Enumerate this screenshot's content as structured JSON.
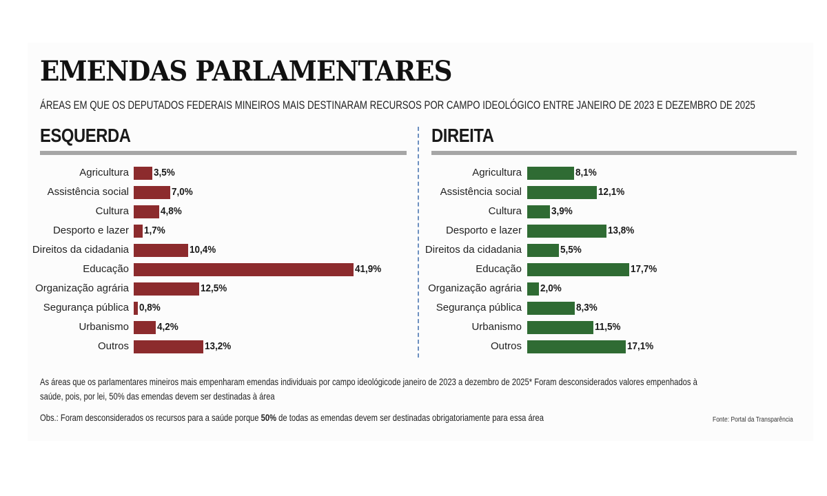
{
  "title": "EMENDAS PARLAMENTARES",
  "subtitle": "ÁREAS EM QUE OS DEPUTADOS FEDERAIS MINEIROS MAIS DESTINARAM RECURSOS POR CAMPO IDEOLÓGICO ENTRE JANEIRO DE 2023 E DEZEMBRO DE 2025",
  "notes": {
    "line1": "As áreas que os parlamentares mineiros mais empenharam emendas individuais por campo ideológicode janeiro de 2023 a dezembro de 2025*  Foram desconsiderados valores empenhados à",
    "line2": "saúde, pois, por lei, 50% das emendas devem ser destinadas à área",
    "obs_before": "Obs.: Foram desconsiderados os recursos para a saúde porque ",
    "obs_bold": "50%",
    "obs_after": " de todas as emendas devem ser destinadas obrigatoriamente para essa área",
    "source": "Fonte: Portal da Transparência"
  },
  "chart_data": [
    {
      "type": "bar",
      "title": "ESQUERDA",
      "color": "#8c2b2d",
      "categories": [
        "Agricultura",
        "Assistência social",
        "Cultura",
        "Desporto e lazer",
        "Direitos da cidadania",
        "Educação",
        "Organização agrária",
        "Segurança pública",
        "Urbanismo",
        "Outros"
      ],
      "values": [
        3.5,
        7.0,
        4.8,
        1.7,
        10.4,
        41.9,
        12.5,
        0.8,
        4.2,
        13.2
      ],
      "labels": [
        "3,5%",
        "7,0%",
        "4,8%",
        "1,7%",
        "10,4%",
        "41,9%",
        "12,5%",
        "0,8%",
        "4,2%",
        "13,2%"
      ]
    },
    {
      "type": "bar",
      "title": "DIREITA",
      "color": "#2f6b33",
      "categories": [
        "Agricultura",
        "Assistência social",
        "Cultura",
        "Desporto e lazer",
        "Direitos da cidadania",
        "Educação",
        "Organização agrária",
        "Segurança pública",
        "Urbanismo",
        "Outros"
      ],
      "values": [
        8.1,
        12.1,
        3.9,
        13.8,
        5.5,
        17.7,
        2.0,
        8.3,
        11.5,
        17.1
      ],
      "labels": [
        "8,1%",
        "12,1%",
        "3,9%",
        "13,8%",
        "5,5%",
        "17,7%",
        "2,0%",
        "8,3%",
        "11,5%",
        "17,1%"
      ]
    }
  ]
}
